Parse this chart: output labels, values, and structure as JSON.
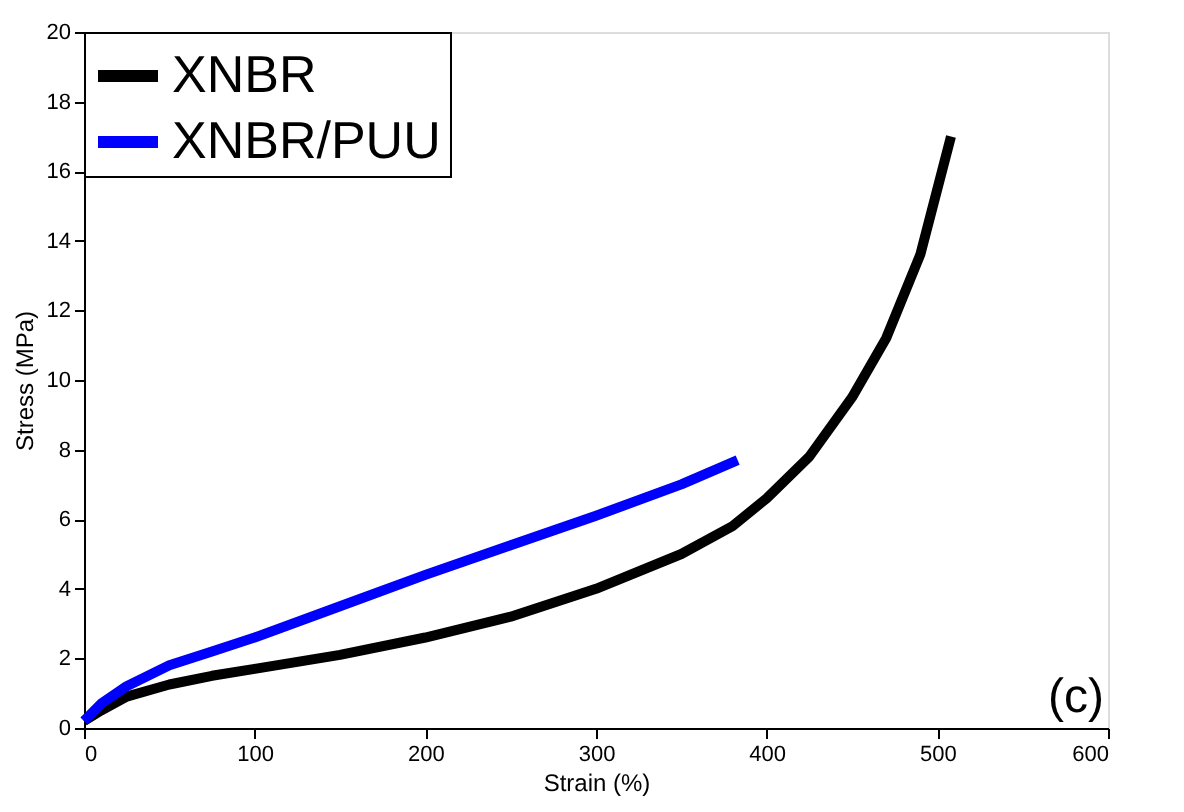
{
  "chart_data": {
    "type": "line",
    "xlabel": "Strain (%)",
    "ylabel": "Stress (MPa)",
    "xlim": [
      0,
      600
    ],
    "ylim": [
      0,
      20
    ],
    "xticks": [
      0,
      100,
      200,
      300,
      400,
      500,
      600
    ],
    "yticks": [
      0,
      2,
      4,
      6,
      8,
      10,
      12,
      14,
      16,
      18,
      20
    ],
    "grid": false,
    "legend": "top left",
    "marker": "none",
    "line_style": "solid",
    "annotations": [
      "(c)"
    ],
    "series": [
      {
        "name": "XNBR",
        "color": "#000000",
        "x": [
          0,
          10,
          25,
          50,
          75,
          100,
          150,
          200,
          250,
          300,
          350,
          380,
          400,
          425,
          450,
          470,
          490,
          508
        ],
        "values": [
          0.2,
          0.5,
          0.9,
          1.25,
          1.5,
          1.7,
          2.1,
          2.6,
          3.2,
          4.0,
          5.0,
          5.8,
          6.6,
          7.8,
          9.5,
          11.2,
          13.6,
          17.0
        ]
      },
      {
        "name": "XNBR/PUU",
        "color": "#0000ff",
        "x": [
          0,
          10,
          25,
          50,
          75,
          100,
          150,
          200,
          250,
          300,
          350,
          383
        ],
        "values": [
          0.2,
          0.7,
          1.2,
          1.8,
          2.2,
          2.6,
          3.5,
          4.4,
          5.25,
          6.1,
          7.0,
          7.7
        ]
      }
    ]
  }
}
